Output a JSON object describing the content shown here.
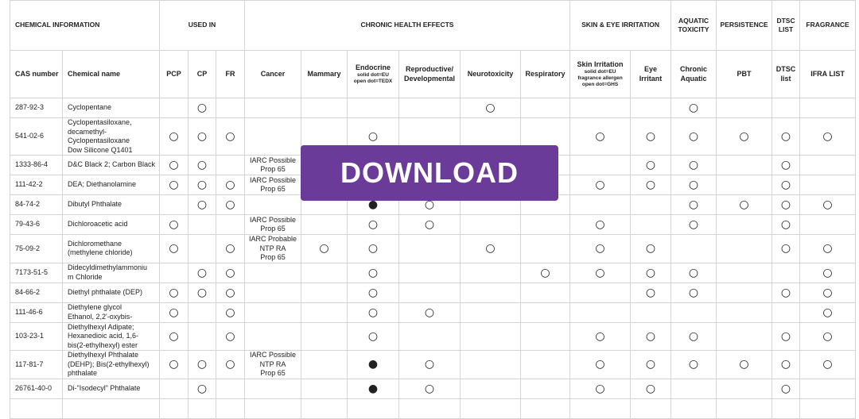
{
  "table": {
    "groups": [
      "CHEMICAL INFORMATION",
      "USED IN",
      "CHRONIC HEALTH EFFECTS",
      "SKIN & EYE IRRITATION",
      "AQUATIC TOXICITY",
      "PERSISTENCE",
      "DTSC LIST",
      "FRAGRANCE"
    ],
    "columns": [
      {
        "label": "CAS number"
      },
      {
        "label": "Chemical name"
      },
      {
        "label": "PCP"
      },
      {
        "label": "CP"
      },
      {
        "label": "FR"
      },
      {
        "label": "Cancer"
      },
      {
        "label": "Mammary"
      },
      {
        "label": "Endocrine",
        "note": "solid dot=EU\nopen dot=TEDX"
      },
      {
        "label": "Reproductive/\nDevelopmental"
      },
      {
        "label": "Neurotoxicity"
      },
      {
        "label": "Respiratory"
      },
      {
        "label": "Skin Irritation",
        "note": "solid dot=EU\nfragrance allergen\nopen dot=GHS"
      },
      {
        "label": "Eye\nIrritant"
      },
      {
        "label": "Chronic\nAquatic"
      },
      {
        "label": "PBT"
      },
      {
        "label": "DTSC\nlist"
      },
      {
        "label": "IFRA LIST"
      }
    ],
    "rows": [
      {
        "cells": [
          "287-92-3",
          "Cyclopentane",
          null,
          "○",
          null,
          null,
          null,
          null,
          null,
          "○",
          null,
          null,
          null,
          "○",
          null,
          null,
          null
        ]
      },
      {
        "cells": [
          "541-02-6",
          "Cyclopentasiloxane,\ndecamethyl-\nCyclopentasiloxane\nDow Silicone Q1401",
          "○",
          "○",
          "○",
          null,
          null,
          "○",
          null,
          null,
          null,
          "○",
          "○",
          "○",
          "○",
          "○",
          "○"
        ]
      },
      {
        "cells": [
          "1333-86-4",
          "D&C Black 2; Carbon Black",
          "○",
          "○",
          null,
          "IARC Possible\nProp 65",
          null,
          null,
          null,
          null,
          null,
          null,
          "○",
          "○",
          null,
          "○",
          null
        ]
      },
      {
        "cells": [
          "111-42-2",
          "DEA; Diethanolamine",
          "○",
          "○",
          "○",
          "IARC Possible\nProp 65",
          null,
          null,
          null,
          null,
          null,
          "○",
          "○",
          "○",
          null,
          "○",
          null
        ]
      },
      {
        "cells": [
          "84-74-2",
          "Dibutyl Phthalate",
          null,
          "○",
          "○",
          null,
          null,
          "●",
          "○",
          null,
          null,
          null,
          null,
          "○",
          "○",
          "○",
          "○"
        ]
      },
      {
        "cells": [
          "79-43-6",
          "Dichloroacetic acid",
          "○",
          null,
          null,
          "IARC Possible\nProp 65",
          null,
          "○",
          "○",
          null,
          null,
          "○",
          null,
          "○",
          null,
          "○",
          null
        ]
      },
      {
        "cells": [
          "75-09-2",
          "Dichloromethane\n(methylene chloride)",
          "○",
          null,
          "○",
          "IARC Probable\nNTP RA\nProp 65",
          "○",
          "○",
          null,
          "○",
          null,
          "○",
          "○",
          null,
          null,
          "○",
          "○"
        ]
      },
      {
        "cells": [
          "7173-51-5",
          "Didecyldimethylammoniu\nm Chloride",
          null,
          "○",
          "○",
          null,
          null,
          "○",
          null,
          null,
          "○",
          "○",
          "○",
          "○",
          null,
          null,
          "○"
        ]
      },
      {
        "cells": [
          "84-66-2",
          "Diethyl phthalate (DEP)",
          "○",
          "○",
          "○",
          null,
          null,
          "○",
          null,
          null,
          null,
          null,
          "○",
          "○",
          null,
          "○",
          "○"
        ]
      },
      {
        "cells": [
          "111-46-6",
          "Diethylene glycol\nEthanol, 2,2'-oxybis-",
          "○",
          null,
          "○",
          null,
          null,
          "○",
          "○",
          null,
          null,
          null,
          null,
          null,
          null,
          null,
          "○"
        ]
      },
      {
        "cells": [
          "103-23-1",
          "Diethylhexyl Adipate;\nHexanedioic acid, 1,6-\nbis(2-ethylhexyl) ester",
          "○",
          null,
          "○",
          null,
          null,
          "○",
          null,
          null,
          null,
          "○",
          "○",
          "○",
          null,
          "○",
          "○"
        ]
      },
      {
        "cells": [
          "117-81-7",
          "Diethylhexyl Phthalate\n(DEHP); Bis(2-ethylhexyl)\nphthalate",
          "○",
          "○",
          "○",
          "IARC Possible\nNTP RA\nProp 65",
          null,
          "●",
          "○",
          null,
          null,
          "○",
          "○",
          "○",
          "○",
          "○",
          "○"
        ]
      },
      {
        "cells": [
          "26761-40-0",
          "Di-\"Isodecyl\" Phthalate",
          null,
          "○",
          null,
          null,
          null,
          "●",
          "○",
          null,
          null,
          "○",
          "○",
          null,
          null,
          "○",
          null
        ]
      }
    ]
  },
  "button": {
    "label": "DOWNLOAD"
  }
}
